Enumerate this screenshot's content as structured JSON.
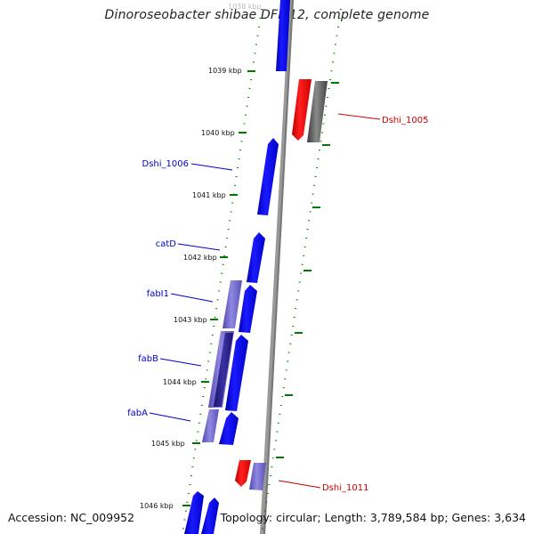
{
  "title": "Dinoroseobacter shibae DFL 12, complete genome",
  "accession": "Accession: NC_009952",
  "summary": "Topology: circular; Length: 3,789,584 bp; Genes: 3,634",
  "kbp_ticks": [
    {
      "label": "1038 kbp",
      "kbp": 1038,
      "faded": true
    },
    {
      "label": "1039 kbp",
      "kbp": 1039
    },
    {
      "label": "1040 kbp",
      "kbp": 1040
    },
    {
      "label": "1041 kbp",
      "kbp": 1041
    },
    {
      "label": "1042 kbp",
      "kbp": 1042
    },
    {
      "label": "1043 kbp",
      "kbp": 1043
    },
    {
      "label": "1044 kbp",
      "kbp": 1044
    },
    {
      "label": "1045 kbp",
      "kbp": 1045
    },
    {
      "label": "1046 kbp",
      "kbp": 1046
    }
  ],
  "gene_labels": [
    {
      "name": "Dshi_1005",
      "strand": "reverse",
      "color": "#cc0000"
    },
    {
      "name": "Dshi_1006",
      "strand": "forward",
      "color": "#0000cc"
    },
    {
      "name": "catD",
      "strand": "forward",
      "color": "#0000cc"
    },
    {
      "name": "fabI1",
      "strand": "forward",
      "color": "#0000cc"
    },
    {
      "name": "fabB",
      "strand": "forward",
      "color": "#0000cc"
    },
    {
      "name": "fabA",
      "strand": "forward",
      "color": "#0000cc"
    },
    {
      "name": "Dshi_1011",
      "strand": "reverse",
      "color": "#cc0000"
    }
  ],
  "colors": {
    "forward_cds": "#0000ff",
    "reverse_cds": "#ff0000",
    "gc_skew_neg": "#555555",
    "gc_skew_pos": "#6b5fc8",
    "backbone": "#999999",
    "tick_green": "#007700"
  }
}
